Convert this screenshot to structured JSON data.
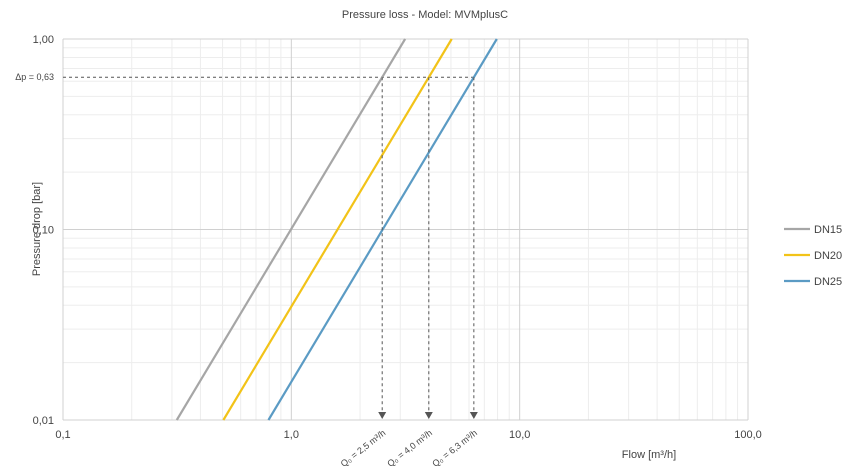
{
  "chart_data": {
    "type": "line",
    "title": "Pressure loss - Model: MVMplusC",
    "xlabel": "Flow [m³/h]",
    "ylabel": "Pressure drop [bar]",
    "xscale": "log",
    "yscale": "log",
    "xlim": [
      0.1,
      100
    ],
    "ylim": [
      0.01,
      1
    ],
    "x_ticks": [
      0.1,
      1,
      10,
      100
    ],
    "x_tick_labels": [
      "0,1",
      "1,0",
      "10,0",
      "100,0"
    ],
    "y_ticks": [
      0.01,
      0.1,
      1
    ],
    "y_tick_labels": [
      "0,01",
      "0,10",
      "1,00"
    ],
    "grid": "major and minor",
    "legend_position": "right",
    "series": [
      {
        "name": "DN15",
        "color": "#a6a6a6",
        "kvs": 3.15,
        "x": [
          0.315,
          3.15
        ],
        "y": [
          0.01,
          1.0
        ]
      },
      {
        "name": "DN20",
        "color": "#f2c318",
        "kvs": 5.04,
        "x": [
          0.504,
          5.04
        ],
        "y": [
          0.01,
          1.0
        ]
      },
      {
        "name": "DN25",
        "color": "#5b9bc4",
        "kvs": 7.94,
        "x": [
          0.794,
          7.94
        ],
        "y": [
          0.01,
          1.0
        ]
      }
    ],
    "reference_line": {
      "label": "Δp = 0,63",
      "y": 0.63
    },
    "annotations": [
      {
        "label": "Q₀ = 2,5 m³/h",
        "x": 2.5
      },
      {
        "label": "Q₀ = 4,0 m³/h",
        "x": 4.0
      },
      {
        "label": "Q₀ = 6,3 m³/h",
        "x": 6.3
      }
    ]
  }
}
